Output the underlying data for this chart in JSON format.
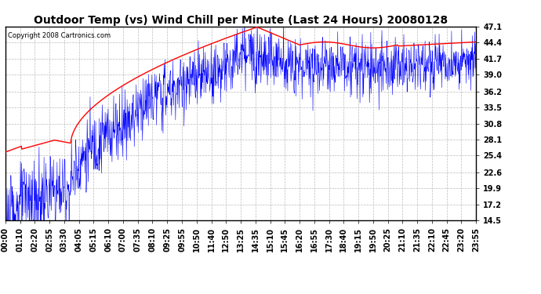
{
  "title": "Outdoor Temp (vs) Wind Chill per Minute (Last 24 Hours) 20080128",
  "copyright": "Copyright 2008 Cartronics.com",
  "yticks": [
    14.5,
    17.2,
    19.9,
    22.6,
    25.4,
    28.1,
    30.8,
    33.5,
    36.2,
    39.0,
    41.7,
    44.4,
    47.1
  ],
  "xtick_labels": [
    "00:00",
    "01:10",
    "02:20",
    "02:55",
    "03:30",
    "04:05",
    "05:15",
    "06:10",
    "07:00",
    "07:35",
    "08:10",
    "09:25",
    "09:55",
    "10:50",
    "11:40",
    "12:50",
    "13:25",
    "14:35",
    "15:10",
    "15:45",
    "16:20",
    "16:55",
    "17:30",
    "18:40",
    "19:15",
    "19:50",
    "20:25",
    "21:10",
    "21:35",
    "22:10",
    "22:45",
    "23:20",
    "23:55"
  ],
  "ymin": 14.5,
  "ymax": 47.1,
  "background_color": "#ffffff",
  "plot_bg_color": "#ffffff",
  "grid_color": "#bbbbbb",
  "outer_temp_color": "#ff0000",
  "wind_chill_color": "#0000ff",
  "title_fontsize": 10,
  "tick_fontsize": 7,
  "copyright_fontsize": 6
}
